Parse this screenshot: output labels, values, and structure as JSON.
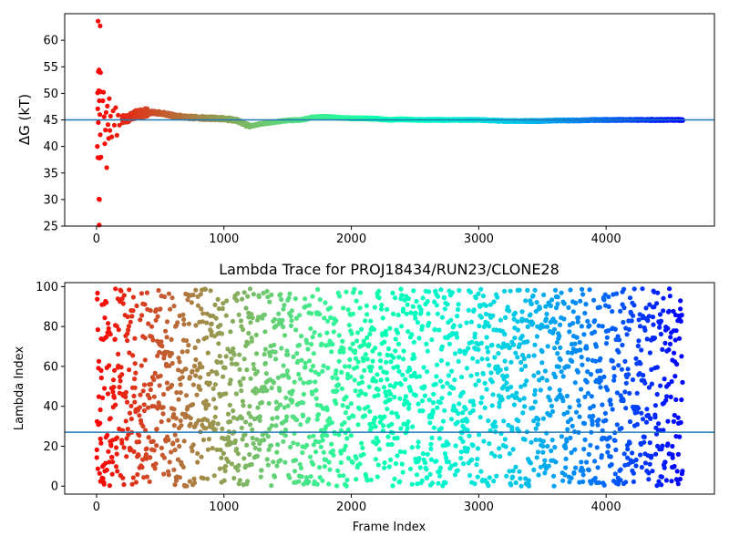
{
  "chart_data": [
    {
      "type": "scatter",
      "title": "",
      "xlabel": "",
      "ylabel": "ΔG (kT)",
      "xlim": [
        -250,
        4850
      ],
      "ylim": [
        25,
        65
      ],
      "x_ticks": [
        0,
        1000,
        2000,
        3000,
        4000
      ],
      "y_ticks": [
        25,
        30,
        35,
        40,
        45,
        50,
        55,
        60
      ],
      "grid": false,
      "reference_line": 45,
      "colormap": "rainbow",
      "color_direction": "red at low frame index to purple at high frame index",
      "reference_line_color": "#1f77b4",
      "frame_range": [
        0,
        4600
      ],
      "series": [
        {
          "points": [
            [
              12,
              63.6
            ],
            [
              28,
              62.7
            ],
            [
              15,
              54.1
            ],
            [
              31,
              53.9
            ],
            [
              20,
              54.4
            ],
            [
              8,
              50.1
            ],
            [
              18,
              50.5
            ],
            [
              22,
              48.6
            ],
            [
              33,
              50.3
            ],
            [
              10,
              47.1
            ],
            [
              26,
              46.0
            ],
            [
              14,
              44.5
            ],
            [
              29,
              42.2
            ],
            [
              6,
              40.0
            ],
            [
              11,
              37.9
            ],
            [
              24,
              37.8
            ],
            [
              35,
              38.0
            ],
            [
              19,
              30.1
            ],
            [
              23,
              30.0
            ],
            [
              21,
              25.2
            ],
            [
              50,
              48.6
            ],
            [
              55,
              50.2
            ],
            [
              60,
              45.6
            ],
            [
              65,
              40.5
            ],
            [
              70,
              43.1
            ],
            [
              75,
              46.4
            ],
            [
              80,
              36.0
            ],
            [
              85,
              47.6
            ],
            [
              90,
              44.1
            ],
            [
              95,
              41.5
            ],
            [
              100,
              49.0
            ],
            [
              105,
              43.0
            ],
            [
              110,
              45.7
            ],
            [
              120,
              41.8
            ],
            [
              130,
              46.7
            ],
            [
              140,
              44.0
            ],
            [
              150,
              47.3
            ],
            [
              160,
              42.1
            ],
            [
              170,
              45.9
            ],
            [
              180,
              44.0
            ]
          ],
          "convergence": [
            [
              200,
              45.0
            ],
            [
              300,
              46.0
            ],
            [
              400,
              46.4
            ],
            [
              500,
              46.3
            ],
            [
              600,
              45.8
            ],
            [
              700,
              45.5
            ],
            [
              800,
              45.4
            ],
            [
              900,
              45.3
            ],
            [
              1000,
              45.2
            ],
            [
              1100,
              44.9
            ],
            [
              1200,
              43.8
            ],
            [
              1300,
              44.3
            ],
            [
              1400,
              44.6
            ],
            [
              1500,
              44.9
            ],
            [
              1600,
              45.0
            ],
            [
              1700,
              45.5
            ],
            [
              1800,
              45.6
            ],
            [
              1900,
              45.4
            ],
            [
              2000,
              45.3
            ],
            [
              2100,
              45.3
            ],
            [
              2200,
              45.2
            ],
            [
              2300,
              45.0
            ],
            [
              2400,
              45.1
            ],
            [
              2500,
              45.0
            ],
            [
              2600,
              45.0
            ],
            [
              2700,
              45.0
            ],
            [
              2800,
              45.0
            ],
            [
              2900,
              45.0
            ],
            [
              3000,
              45.0
            ],
            [
              3100,
              44.9
            ],
            [
              3200,
              44.8
            ],
            [
              3300,
              44.8
            ],
            [
              3400,
              44.8
            ],
            [
              3500,
              44.8
            ],
            [
              3600,
              44.9
            ],
            [
              3700,
              44.9
            ],
            [
              3800,
              44.9
            ],
            [
              3900,
              45.0
            ],
            [
              4000,
              45.0
            ],
            [
              4100,
              45.0
            ],
            [
              4200,
              45.0
            ],
            [
              4300,
              45.0
            ],
            [
              4400,
              45.0
            ],
            [
              4500,
              45.0
            ],
            [
              4600,
              45.0
            ]
          ]
        }
      ]
    },
    {
      "type": "scatter",
      "title": "Lambda Trace for PROJ18434/RUN23/CLONE28",
      "xlabel": "Frame Index",
      "ylabel": "Lambda Index",
      "xlim": [
        -250,
        4850
      ],
      "ylim": [
        -4,
        102
      ],
      "x_ticks": [
        0,
        1000,
        2000,
        3000,
        4000
      ],
      "y_ticks": [
        0,
        20,
        40,
        60,
        80,
        100
      ],
      "grid": false,
      "reference_line": 27,
      "colormap": "rainbow",
      "color_direction": "red at low frame index to purple at high frame index",
      "reference_line_color": "#1f77b4",
      "frame_range": [
        0,
        4600
      ],
      "lambda_range": [
        0,
        99
      ],
      "approx_point_count": 2300
    }
  ]
}
